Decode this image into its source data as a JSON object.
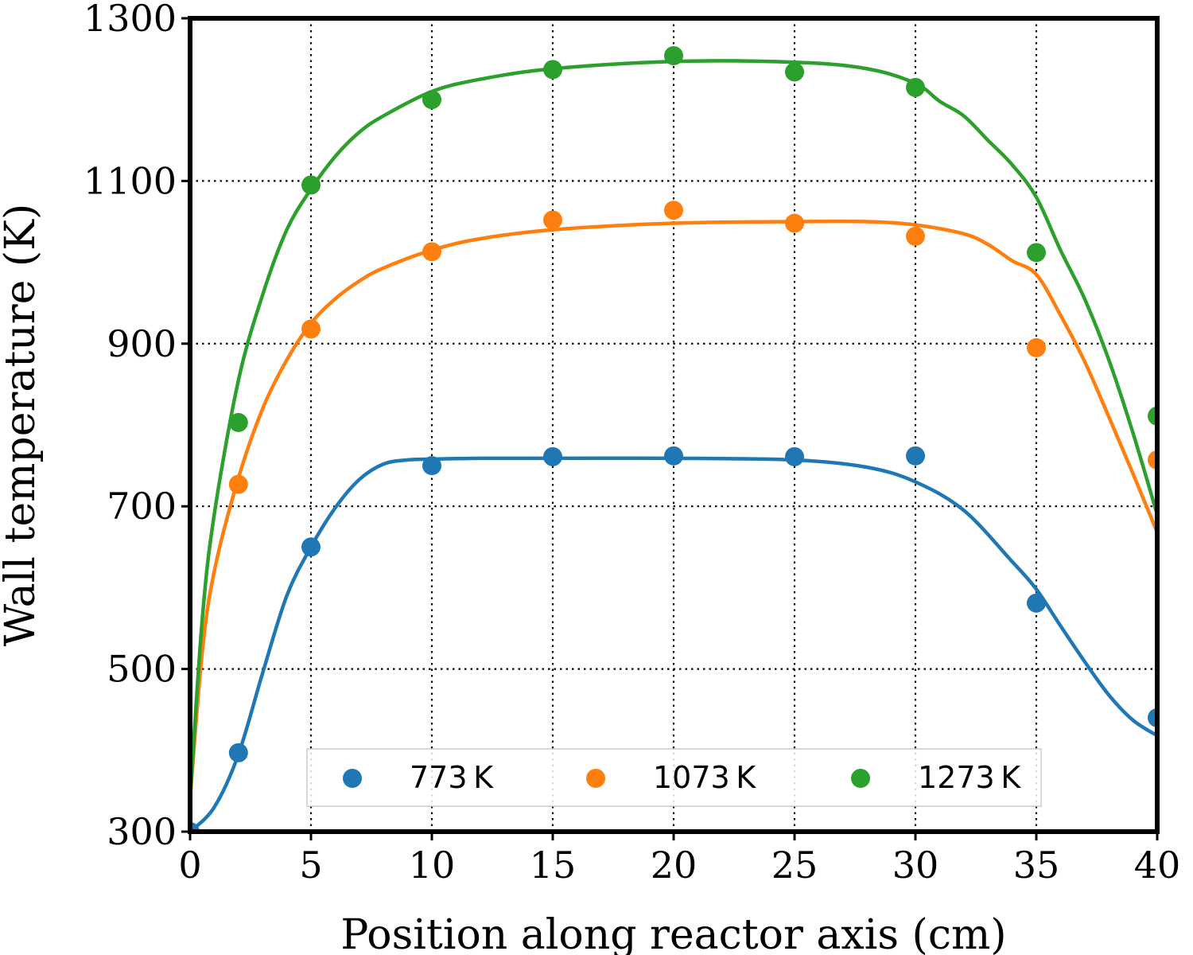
{
  "chart_data": {
    "type": "scatter",
    "xlabel": "Position along reactor axis (cm)",
    "ylabel": "Wall temperature (K)",
    "xlim": [
      0,
      40
    ],
    "ylim": [
      300,
      1300
    ],
    "xticks": [
      0,
      5,
      10,
      15,
      20,
      25,
      30,
      35,
      40
    ],
    "xtick_labels": [
      "0",
      "5",
      "10",
      "15",
      "20",
      "25",
      "30",
      "35",
      "40"
    ],
    "yticks": [
      300,
      500,
      700,
      900,
      1100,
      1300
    ],
    "ytick_labels": [
      "300",
      "500",
      "700",
      "900",
      "1100",
      "1300"
    ],
    "grid": "dotted",
    "legend_placement": "bottom-center",
    "series": [
      {
        "name": "773 K",
        "color": "#1f77b4",
        "points_x": [
          0,
          2,
          5,
          10,
          15,
          20,
          25,
          30,
          35,
          40
        ],
        "points_y": [
          300,
          397,
          650,
          750,
          761,
          762,
          761,
          762,
          581,
          440
        ],
        "fit_x": [
          0,
          1,
          2,
          3,
          4,
          5,
          6,
          7,
          8,
          9,
          10,
          12,
          15,
          20,
          25,
          28,
          30,
          32,
          34,
          35,
          36,
          37,
          38,
          39,
          40
        ],
        "fit_y": [
          300,
          330,
          395,
          495,
          590,
          650,
          698,
          733,
          752,
          757,
          758,
          759,
          759,
          759,
          757,
          748,
          730,
          695,
          632,
          598,
          553,
          509,
          468,
          437,
          418
        ]
      },
      {
        "name": "1073 K",
        "color": "#ff7f0e",
        "points_x": [
          2,
          5,
          10,
          15,
          20,
          25,
          30,
          35,
          40
        ],
        "points_y": [
          727,
          918,
          1013,
          1052,
          1064,
          1048,
          1032,
          895,
          757
        ],
        "fit_x": [
          0,
          0.5,
          1,
          2,
          3,
          4,
          5,
          6,
          7,
          8,
          10,
          12,
          15,
          20,
          25,
          28,
          30,
          32,
          33,
          34,
          35,
          36,
          37,
          38,
          39,
          40
        ],
        "fit_y": [
          340,
          520,
          620,
          735,
          820,
          880,
          925,
          955,
          977,
          993,
          1015,
          1029,
          1040,
          1048,
          1050,
          1050,
          1046,
          1035,
          1022,
          1002,
          985,
          935,
          878,
          810,
          740,
          668
        ]
      },
      {
        "name": "1273 K",
        "color": "#2ca02c",
        "points_x": [
          2,
          5,
          10,
          15,
          20,
          25,
          30,
          35,
          40
        ],
        "points_y": [
          803,
          1095,
          1200,
          1237,
          1254,
          1234,
          1215,
          1012,
          811
        ],
        "fit_x": [
          0,
          0.5,
          1,
          2,
          3,
          4,
          5,
          6,
          7,
          8,
          10,
          12,
          15,
          20,
          25,
          28,
          30,
          31,
          32,
          33,
          34,
          35,
          36,
          37,
          38,
          39,
          40
        ],
        "fit_y": [
          340,
          560,
          690,
          855,
          960,
          1040,
          1090,
          1130,
          1160,
          1180,
          1210,
          1225,
          1238,
          1247,
          1246,
          1238,
          1220,
          1198,
          1180,
          1150,
          1120,
          1080,
          1015,
          955,
          880,
          790,
          690
        ]
      }
    ]
  }
}
